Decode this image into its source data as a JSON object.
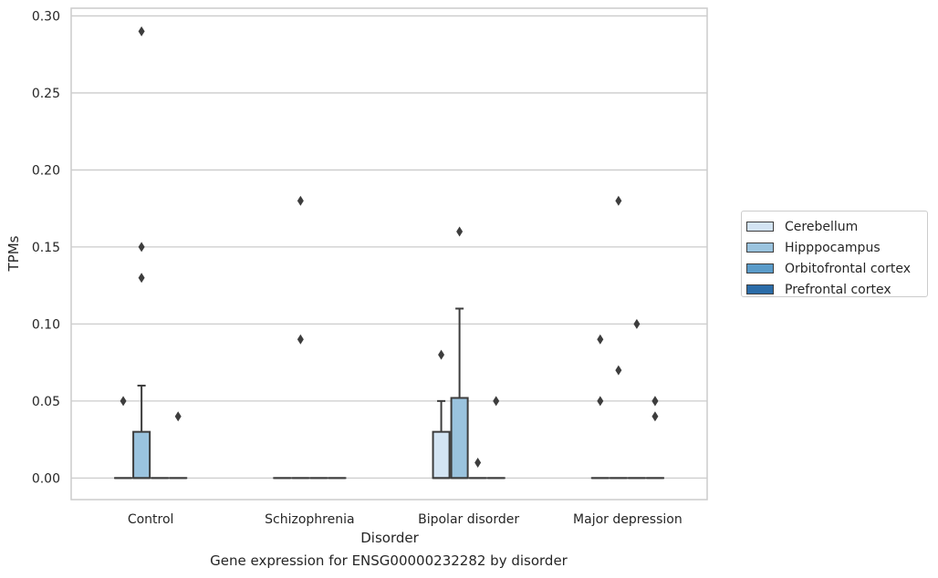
{
  "caption": "Gene expression for ENSG00000232282 by disorder",
  "chart_data": {
    "type": "box",
    "title": "",
    "xlabel": "Disorder",
    "ylabel": "TPMs",
    "ylim": [
      -0.014,
      0.305
    ],
    "yticks": [
      0.0,
      0.05,
      0.1,
      0.15,
      0.2,
      0.25,
      0.3
    ],
    "ytick_labels": [
      "0.00",
      "0.05",
      "0.10",
      "0.15",
      "0.20",
      "0.25",
      "0.30"
    ],
    "categories": [
      "Control",
      "Schizophrenia",
      "Bipolar disorder",
      "Major depression"
    ],
    "grid": "horizontal",
    "legend_position": "right",
    "series": [
      {
        "name": "Cerebellum",
        "color": "#d3e4f3",
        "boxes": [
          {
            "q1": 0,
            "median": 0,
            "q3": 0,
            "whisker_low": 0,
            "whisker_high": 0,
            "outliers": [
              0.05
            ]
          },
          {
            "q1": 0,
            "median": 0,
            "q3": 0,
            "whisker_low": 0,
            "whisker_high": 0,
            "outliers": []
          },
          {
            "q1": 0,
            "median": 0,
            "q3": 0.03,
            "whisker_low": 0,
            "whisker_high": 0.05,
            "outliers": [
              0.08
            ]
          },
          {
            "q1": 0,
            "median": 0,
            "q3": 0,
            "whisker_low": 0,
            "whisker_high": 0,
            "outliers": [
              0.09,
              0.05
            ]
          }
        ]
      },
      {
        "name": "Hipppocampus",
        "color": "#9ac3de",
        "boxes": [
          {
            "q1": 0,
            "median": 0,
            "q3": 0.03,
            "whisker_low": 0,
            "whisker_high": 0.06,
            "outliers": [
              0.29,
              0.15,
              0.13
            ]
          },
          {
            "q1": 0,
            "median": 0,
            "q3": 0,
            "whisker_low": 0,
            "whisker_high": 0,
            "outliers": [
              0.18,
              0.09
            ]
          },
          {
            "q1": 0,
            "median": 0,
            "q3": 0.052,
            "whisker_low": 0,
            "whisker_high": 0.11,
            "outliers": [
              0.16
            ]
          },
          {
            "q1": 0,
            "median": 0,
            "q3": 0,
            "whisker_low": 0,
            "whisker_high": 0,
            "outliers": [
              0.18,
              0.07
            ]
          }
        ]
      },
      {
        "name": "Orbitofrontal cortex",
        "color": "#5a9bc9",
        "boxes": [
          {
            "q1": 0,
            "median": 0,
            "q3": 0,
            "whisker_low": 0,
            "whisker_high": 0,
            "outliers": []
          },
          {
            "q1": 0,
            "median": 0,
            "q3": 0,
            "whisker_low": 0,
            "whisker_high": 0,
            "outliers": []
          },
          {
            "q1": 0,
            "median": 0,
            "q3": 0,
            "whisker_low": 0,
            "whisker_high": 0,
            "outliers": [
              0.01
            ]
          },
          {
            "q1": 0,
            "median": 0,
            "q3": 0,
            "whisker_low": 0,
            "whisker_high": 0,
            "outliers": [
              0.1
            ]
          }
        ]
      },
      {
        "name": "Prefrontal cortex",
        "color": "#2b6ca8",
        "boxes": [
          {
            "q1": 0,
            "median": 0,
            "q3": 0,
            "whisker_low": 0,
            "whisker_high": 0,
            "outliers": [
              0.04
            ]
          },
          {
            "q1": 0,
            "median": 0,
            "q3": 0,
            "whisker_low": 0,
            "whisker_high": 0,
            "outliers": []
          },
          {
            "q1": 0,
            "median": 0,
            "q3": 0,
            "whisker_low": 0,
            "whisker_high": 0,
            "outliers": [
              0.05
            ]
          },
          {
            "q1": 0,
            "median": 0,
            "q3": 0,
            "whisker_low": 0,
            "whisker_high": 0,
            "outliers": [
              0.05,
              0.05,
              0.04
            ]
          }
        ]
      }
    ]
  }
}
